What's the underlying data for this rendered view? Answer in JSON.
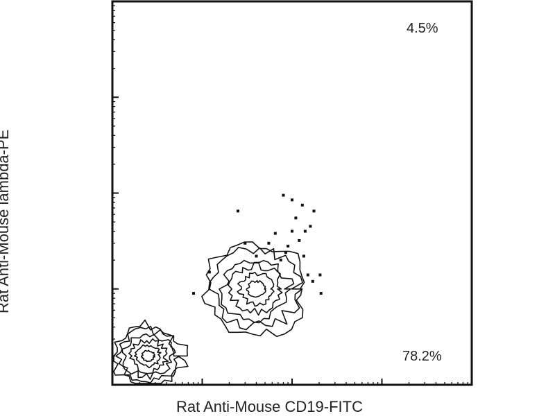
{
  "chart_data": {
    "type": "scatter",
    "subtype": "flow-cytometry-contour",
    "xlabel": "Rat Anti-Mouse CD19-FITC",
    "ylabel": "Rat Anti-Mouse lambda-PE",
    "xscale": "log",
    "yscale": "log",
    "xlim": [
      1,
      10000
    ],
    "ylim": [
      1,
      10000
    ],
    "x_major_ticks": [
      1,
      10,
      100,
      1000,
      10000
    ],
    "y_major_ticks": [
      1,
      10,
      100,
      1000,
      10000
    ],
    "quadrant_percentages": [
      {
        "quadrant": "upper-right",
        "value": "4.5%"
      },
      {
        "quadrant": "lower-right",
        "value": "78.2%"
      }
    ],
    "populations": [
      {
        "center": [
          2.5,
          2.0
        ],
        "spread": [
          0.25,
          0.2
        ]
      },
      {
        "center": [
          40,
          10
        ],
        "spread": [
          0.35,
          0.3
        ]
      }
    ],
    "scatter_points": [
      [
        80,
        95
      ],
      [
        25,
        65
      ],
      [
        100,
        85
      ],
      [
        140,
        40
      ],
      [
        175,
        65
      ],
      [
        160,
        45
      ],
      [
        75,
        20
      ],
      [
        40,
        22
      ],
      [
        30,
        30
      ],
      [
        55,
        30
      ],
      [
        120,
        32
      ],
      [
        150,
        14
      ],
      [
        90,
        28
      ],
      [
        65,
        38
      ],
      [
        110,
        55
      ],
      [
        130,
        75
      ],
      [
        12,
        15
      ],
      [
        8,
        9
      ],
      [
        170,
        12
      ],
      [
        210,
        9
      ],
      [
        205,
        14
      ],
      [
        135,
        22
      ],
      [
        100,
        40
      ],
      [
        85,
        24
      ]
    ],
    "grid": false,
    "legend": "none"
  }
}
